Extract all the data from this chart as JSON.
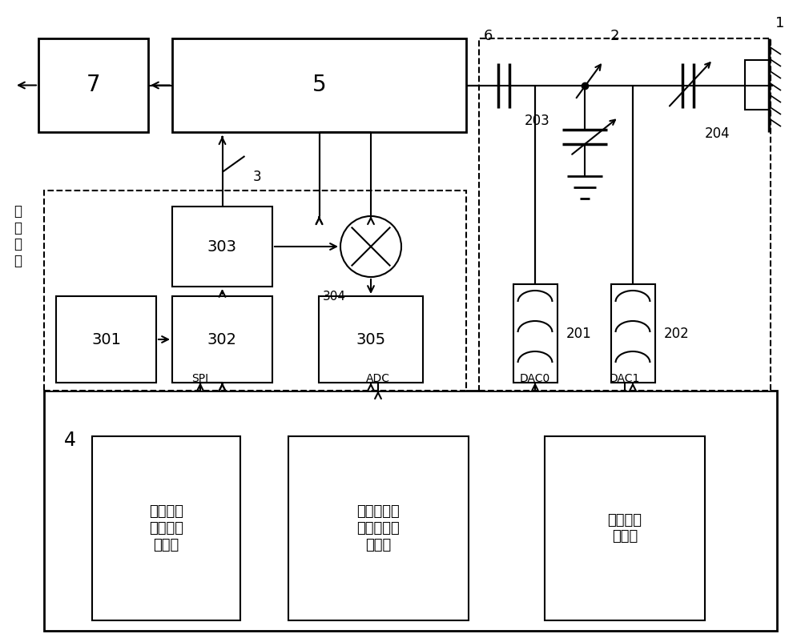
{
  "bg": "#ffffff",
  "lc": "#000000",
  "fig_w": 10.0,
  "fig_h": 8.02,
  "dpi": 100,
  "labels": {
    "n1": "1",
    "n2": "2",
    "n3": "3",
    "n4": "4",
    "n5": "5",
    "n6": "6",
    "n7": "7",
    "n201": "201",
    "n202": "202",
    "n203": "203",
    "n204": "204",
    "n301": "301",
    "n302": "302",
    "n303": "303",
    "n304": "304",
    "n305": "305",
    "spi": "SPI",
    "adc": "ADC",
    "dac0": "DAC0",
    "dac1": "DAC1",
    "receiver": "至\n接\n收\n机",
    "sub1": "扫频信号\n频率控制\n子模块",
    "sub2": "工作谐振频\n点偏移提取\n子模块",
    "sub3": "匹配控制\n子模块"
  }
}
